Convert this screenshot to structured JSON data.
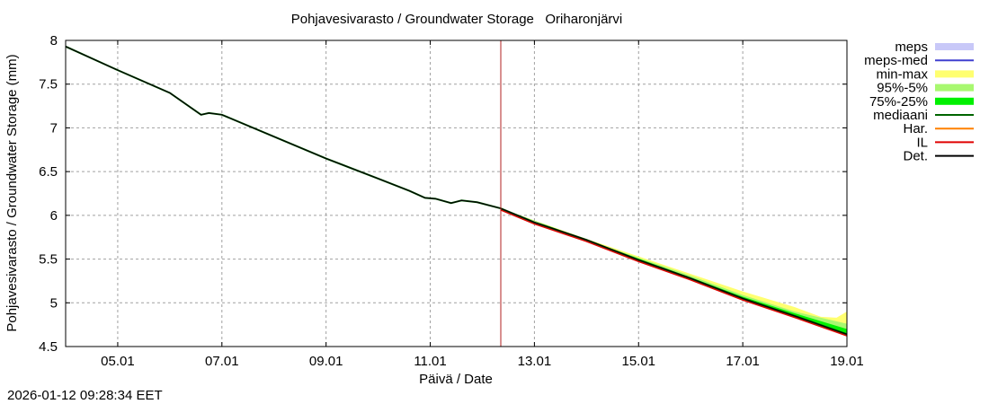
{
  "chart_data": {
    "type": "line",
    "title": "Pohjavesivarasto / Groundwater Storage   Oriharonjärvi",
    "xlabel": "Päivä / Date",
    "ylabel": "Pohjavesivarasto / Groundwater Storage (mm)",
    "ylim": [
      4.5,
      8
    ],
    "yticks": [
      "8",
      "7.5",
      "7",
      "6.5",
      "6",
      "5.5",
      "5",
      "4.5"
    ],
    "xticks": [
      "05.01",
      "07.01",
      "09.01",
      "11.01",
      "13.01",
      "15.01",
      "17.01",
      "19.01"
    ],
    "grid": true,
    "legend_position": "right",
    "legend": [
      {
        "label": "meps",
        "color": "#c8c8f8",
        "kind": "band"
      },
      {
        "label": "meps-med",
        "color": "#4040d0",
        "kind": "line"
      },
      {
        "label": "min-max",
        "color": "#ffff70",
        "kind": "band"
      },
      {
        "label": "95%-5%",
        "color": "#a8f870",
        "kind": "band"
      },
      {
        "label": "75%-25%",
        "color": "#00f000",
        "kind": "band"
      },
      {
        "label": "mediaani",
        "color": "#006400",
        "kind": "line"
      },
      {
        "label": "Har.",
        "color": "#ff8000",
        "kind": "line"
      },
      {
        "label": "IL",
        "color": "#e00000",
        "kind": "line"
      },
      {
        "label": "Det.",
        "color": "#000000",
        "kind": "line"
      }
    ],
    "forecast_start_marker": "12.01 09:28",
    "series": [
      {
        "name": "Det. (observed + forecast)",
        "x_days_from_04_01": [
          0,
          1,
          2,
          2.6,
          2.75,
          3,
          4,
          5,
          6,
          6.6,
          6.9,
          7.1,
          7.4,
          7.6,
          7.9,
          8.35,
          9,
          10,
          11,
          12,
          13,
          14,
          15
        ],
        "values": [
          7.93,
          7.66,
          7.4,
          7.15,
          7.17,
          7.15,
          6.9,
          6.65,
          6.42,
          6.28,
          6.2,
          6.19,
          6.14,
          6.17,
          6.15,
          6.08,
          5.92,
          5.72,
          5.49,
          5.28,
          5.05,
          4.85,
          4.64
        ]
      },
      {
        "name": "min-max upper",
        "x_days_from_04_01": [
          8.35,
          10,
          12,
          13,
          14,
          14.5,
          14.8,
          15
        ],
        "values": [
          6.08,
          5.73,
          5.33,
          5.13,
          4.95,
          4.84,
          4.83,
          4.9
        ]
      },
      {
        "name": "95%-5% upper",
        "x_days_from_04_01": [
          8.35,
          10,
          12,
          13,
          14,
          15
        ],
        "values": [
          6.08,
          5.72,
          5.31,
          5.09,
          4.9,
          4.76
        ]
      },
      {
        "name": "75%-25% upper",
        "x_days_from_04_01": [
          8.35,
          10,
          12,
          13,
          14,
          15
        ],
        "values": [
          6.08,
          5.72,
          5.29,
          5.07,
          4.88,
          4.7
        ]
      }
    ]
  },
  "title": "Pohjavesivarasto / Groundwater Storage   Oriharonjärvi",
  "xlabel": "Päivä / Date",
  "ylabel": "Pohjavesivarasto / Groundwater Storage (mm)",
  "timestamp": "2026-01-12 09:28:34 EET"
}
